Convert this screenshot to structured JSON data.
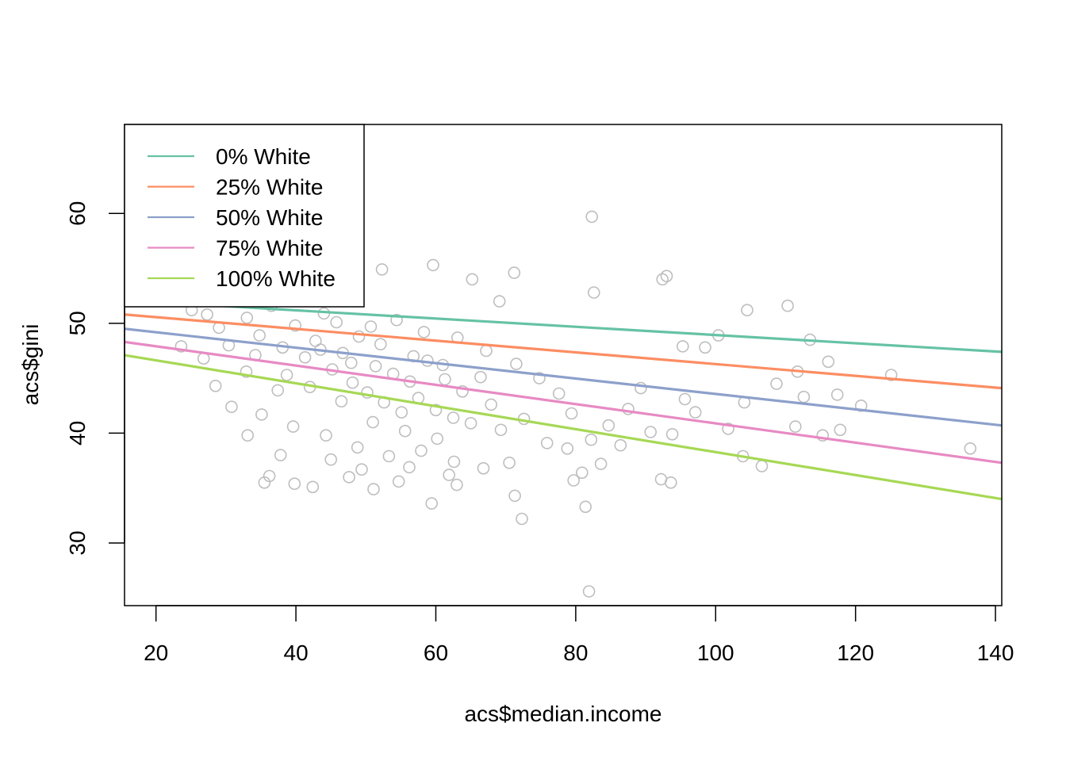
{
  "chart_data": {
    "type": "scatter",
    "title": "",
    "xlabel": "acs$median.income",
    "ylabel": "acs$gini",
    "xlim": [
      15.5,
      140.9
    ],
    "ylim": [
      24.3,
      68.1
    ],
    "x_ticks": [
      20,
      40,
      60,
      80,
      100,
      120,
      140
    ],
    "y_ticks": [
      30,
      40,
      50,
      60
    ],
    "x_tick_labels": [
      "20",
      "40",
      "60",
      "80",
      "100",
      "120",
      "140"
    ],
    "y_tick_labels": [
      "30",
      "40",
      "50",
      "60"
    ],
    "grid": false,
    "legend_position": "top-left",
    "point_color": "#BEBEBE",
    "points": [
      [
        25.1,
        51.2
      ],
      [
        27.3,
        50.8
      ],
      [
        29.0,
        49.6
      ],
      [
        31.2,
        52.0
      ],
      [
        33.0,
        50.5
      ],
      [
        34.8,
        48.9
      ],
      [
        36.5,
        51.6
      ],
      [
        38.1,
        47.8
      ],
      [
        39.9,
        49.8
      ],
      [
        41.3,
        46.9
      ],
      [
        42.8,
        48.4
      ],
      [
        44.0,
        50.9
      ],
      [
        45.2,
        45.8
      ],
      [
        46.7,
        47.3
      ],
      [
        48.1,
        44.6
      ],
      [
        49.0,
        48.8
      ],
      [
        50.2,
        43.7
      ],
      [
        51.4,
        46.1
      ],
      [
        52.6,
        42.8
      ],
      [
        53.9,
        45.4
      ],
      [
        55.1,
        41.9
      ],
      [
        56.3,
        44.7
      ],
      [
        57.5,
        43.2
      ],
      [
        58.8,
        46.6
      ],
      [
        60.0,
        42.1
      ],
      [
        61.3,
        44.9
      ],
      [
        62.5,
        41.4
      ],
      [
        63.8,
        43.8
      ],
      [
        65.0,
        40.9
      ],
      [
        66.4,
        45.1
      ],
      [
        67.9,
        42.6
      ],
      [
        69.3,
        40.3
      ],
      [
        28.5,
        44.3
      ],
      [
        30.8,
        42.4
      ],
      [
        32.9,
        45.6
      ],
      [
        35.1,
        41.7
      ],
      [
        37.4,
        43.9
      ],
      [
        39.6,
        40.6
      ],
      [
        42.0,
        44.2
      ],
      [
        44.3,
        39.8
      ],
      [
        46.5,
        42.9
      ],
      [
        48.8,
        38.7
      ],
      [
        51.0,
        41.0
      ],
      [
        53.3,
        37.9
      ],
      [
        55.6,
        40.2
      ],
      [
        57.9,
        38.4
      ],
      [
        60.2,
        39.5
      ],
      [
        62.6,
        37.4
      ],
      [
        30.4,
        48.0
      ],
      [
        34.2,
        47.1
      ],
      [
        38.7,
        45.3
      ],
      [
        43.5,
        47.6
      ],
      [
        47.9,
        46.4
      ],
      [
        52.1,
        48.1
      ],
      [
        56.8,
        47.0
      ],
      [
        61.0,
        46.2
      ],
      [
        23.6,
        47.9
      ],
      [
        26.8,
        46.8
      ],
      [
        45.8,
        50.1
      ],
      [
        50.7,
        49.7
      ],
      [
        54.4,
        50.3
      ],
      [
        58.3,
        49.2
      ],
      [
        63.1,
        48.7
      ],
      [
        67.2,
        47.5
      ],
      [
        71.5,
        46.3
      ],
      [
        74.8,
        45.0
      ],
      [
        77.6,
        43.6
      ],
      [
        79.4,
        41.8
      ],
      [
        82.2,
        39.4
      ],
      [
        84.7,
        40.7
      ],
      [
        87.5,
        42.2
      ],
      [
        89.3,
        44.1
      ],
      [
        72.6,
        41.3
      ],
      [
        75.9,
        39.1
      ],
      [
        78.8,
        38.6
      ],
      [
        80.9,
        36.4
      ],
      [
        83.6,
        37.2
      ],
      [
        86.4,
        38.9
      ],
      [
        90.7,
        40.1
      ],
      [
        93.8,
        39.9
      ],
      [
        95.6,
        43.1
      ],
      [
        97.1,
        41.9
      ],
      [
        101.8,
        40.4
      ],
      [
        103.9,
        37.9
      ],
      [
        106.6,
        37.0
      ],
      [
        111.4,
        40.6
      ],
      [
        115.3,
        39.8
      ],
      [
        117.8,
        40.3
      ],
      [
        120.8,
        42.5
      ],
      [
        125.1,
        45.3
      ],
      [
        136.4,
        38.6
      ],
      [
        92.4,
        54.0
      ],
      [
        93.0,
        54.3
      ],
      [
        82.3,
        59.7
      ],
      [
        82.6,
        52.8
      ],
      [
        71.2,
        54.6
      ],
      [
        59.6,
        55.3
      ],
      [
        52.3,
        54.9
      ],
      [
        65.2,
        54.0
      ],
      [
        69.1,
        52.0
      ],
      [
        104.5,
        51.2
      ],
      [
        110.3,
        51.6
      ],
      [
        113.5,
        48.5
      ],
      [
        116.1,
        46.5
      ],
      [
        98.5,
        47.8
      ],
      [
        100.4,
        48.9
      ],
      [
        95.3,
        47.9
      ],
      [
        117.4,
        43.5
      ],
      [
        112.6,
        43.3
      ],
      [
        104.1,
        42.8
      ],
      [
        108.7,
        44.5
      ],
      [
        111.7,
        45.6
      ],
      [
        81.9,
        25.6
      ],
      [
        72.3,
        32.2
      ],
      [
        59.4,
        33.6
      ],
      [
        71.3,
        34.3
      ],
      [
        81.4,
        33.3
      ],
      [
        79.7,
        35.7
      ],
      [
        92.2,
        35.8
      ],
      [
        93.6,
        35.5
      ],
      [
        35.5,
        35.5
      ],
      [
        36.2,
        36.1
      ],
      [
        39.8,
        35.4
      ],
      [
        42.4,
        35.1
      ],
      [
        47.6,
        36.0
      ],
      [
        51.1,
        34.9
      ],
      [
        54.7,
        35.6
      ],
      [
        63.0,
        35.3
      ],
      [
        33.1,
        39.8
      ],
      [
        37.8,
        38.0
      ],
      [
        45.0,
        37.6
      ],
      [
        49.4,
        36.7
      ],
      [
        56.2,
        36.9
      ],
      [
        61.9,
        36.2
      ],
      [
        66.8,
        36.8
      ],
      [
        70.5,
        37.3
      ]
    ],
    "series": [
      {
        "name": "0% White",
        "color": "#66C2A5",
        "x": [
          15.5,
          140.9
        ],
        "y": [
          52.1,
          47.4
        ]
      },
      {
        "name": "25% White",
        "color": "#FC8D62",
        "x": [
          15.5,
          140.9
        ],
        "y": [
          50.8,
          44.1
        ]
      },
      {
        "name": "50% White",
        "color": "#8DA0CB",
        "x": [
          15.5,
          140.9
        ],
        "y": [
          49.5,
          40.7
        ]
      },
      {
        "name": "75% White",
        "color": "#E78AC3",
        "x": [
          15.5,
          140.9
        ],
        "y": [
          48.3,
          37.3
        ]
      },
      {
        "name": "100% White",
        "color": "#A6D854",
        "x": [
          15.5,
          140.9
        ],
        "y": [
          47.1,
          34.0
        ]
      }
    ]
  }
}
